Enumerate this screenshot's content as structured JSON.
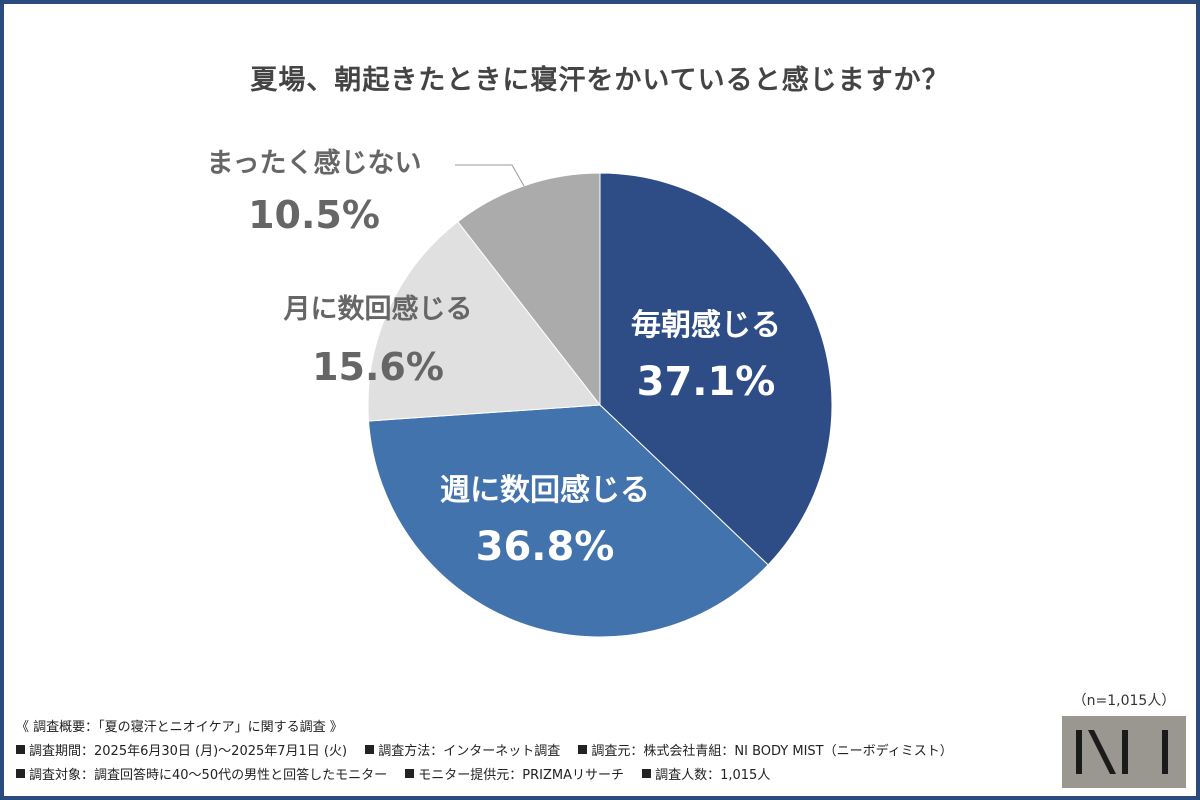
{
  "title": "夏場、朝起きたときに寝汗をかいていると感じますか？",
  "chart_data": {
    "type": "pie",
    "slices": [
      {
        "label": "毎朝感じる",
        "value": 37.1,
        "value_label": "37.1%",
        "color": "#2e4d87"
      },
      {
        "label": "週に数回感じる",
        "value": 36.8,
        "value_label": "36.8%",
        "color": "#4273ad"
      },
      {
        "label": "月に数回感じる",
        "value": 15.6,
        "value_label": "15.6%",
        "color": "#e0e0e0"
      },
      {
        "label": "まったく感じない",
        "value": 10.5,
        "value_label": "10.5%",
        "color": "#ababab"
      }
    ],
    "start": "12 o'clock",
    "direction": "clockwise"
  },
  "sample_size": "（n=1,015人）",
  "footer": {
    "heading": "《 調査概要：「夏の寝汗とニオイケア」に関する調査 》",
    "row1": [
      "調査期間：2025年6月30日 (月)〜2025年7月1日 (火)",
      "調査方法：インターネット調査",
      "調査元：株式会社青組：NI BODY MIST（ニーボディミスト）"
    ],
    "row2": [
      "調査対象：調査回答時に40〜50代の男性と回答したモニター",
      "モニター提供元：PRIZMAリサーチ",
      "調査人数：1,015人"
    ]
  },
  "logo": {
    "text": "NI",
    "color": "#9a9790"
  }
}
